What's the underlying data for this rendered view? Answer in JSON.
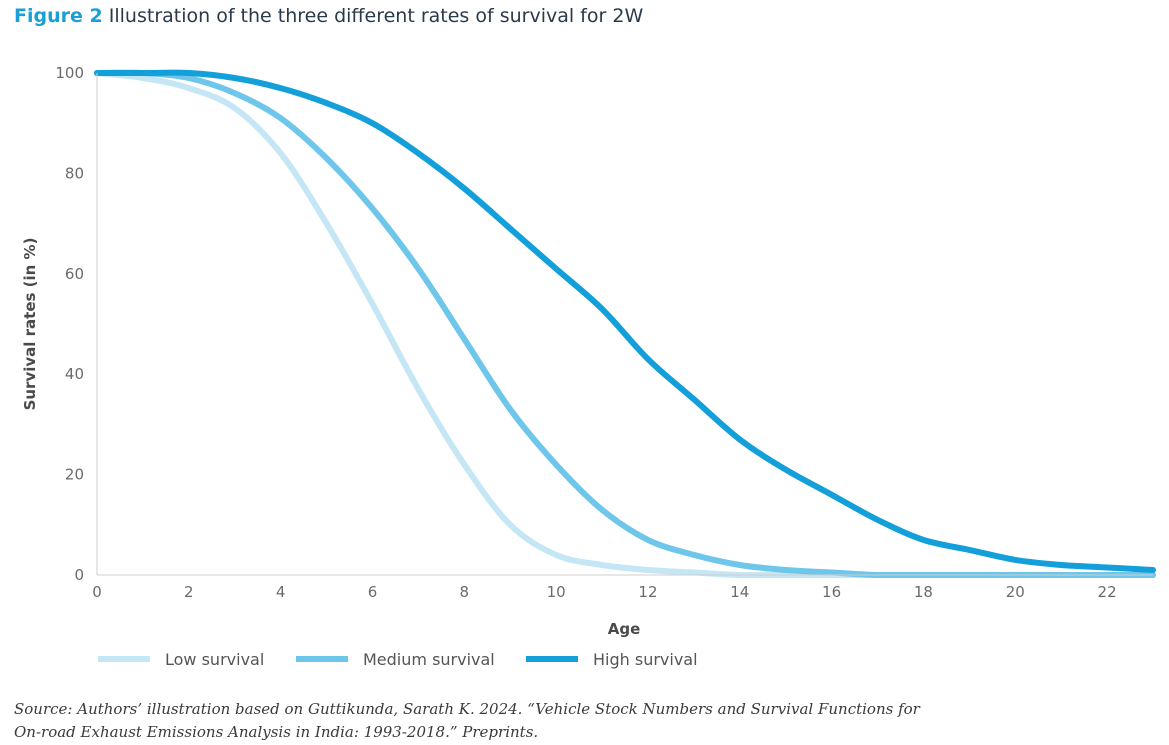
{
  "figure": {
    "label": "Figure 2",
    "title": "Illustration of the three different rates of survival for 2W"
  },
  "chart_data": {
    "type": "line",
    "xlabel": "Age",
    "ylabel": "Survival rates (in %)",
    "xlim": [
      0,
      23
    ],
    "ylim": [
      0,
      100
    ],
    "x_ticks": [
      "0",
      "2",
      "4",
      "6",
      "8",
      "10",
      "12",
      "14",
      "16",
      "18",
      "20",
      "22"
    ],
    "y_ticks": [
      "0",
      "20",
      "40",
      "60",
      "80",
      "100"
    ],
    "grid": false,
    "legend_position": "bottom-left",
    "x": [
      0,
      1,
      2,
      3,
      4,
      5,
      6,
      7,
      8,
      9,
      10,
      11,
      12,
      13,
      14,
      15,
      16,
      17,
      18,
      19,
      20,
      21,
      22,
      23
    ],
    "series": [
      {
        "name": "Low survival",
        "color": "#c4e6f5",
        "values": [
          100,
          99,
          97,
          93,
          84,
          70,
          54,
          37,
          22,
          10,
          4,
          2,
          1,
          0.5,
          0,
          0,
          0,
          0,
          0,
          0,
          0,
          0,
          0,
          0
        ]
      },
      {
        "name": "Medium survival",
        "color": "#6ec6ea",
        "values": [
          100,
          100,
          99,
          96,
          91,
          83,
          73,
          61,
          47,
          33,
          22,
          13,
          7,
          4,
          2,
          1,
          0.5,
          0,
          0,
          0,
          0,
          0,
          0,
          0
        ]
      },
      {
        "name": "High survival",
        "color": "#139fd9",
        "values": [
          100,
          100,
          100,
          99,
          97,
          94,
          90,
          84,
          77,
          69,
          61,
          53,
          43,
          35,
          27,
          21,
          16,
          11,
          7,
          5,
          3,
          2,
          1.5,
          1
        ]
      }
    ]
  },
  "source": {
    "line1": "Source: Authors’ illustration based on Guttikunda, Sarath K. 2024. “Vehicle Stock Numbers and Survival Functions for",
    "line2": "On-road Exhaust Emissions Analysis in India: 1993-2018.” Preprints."
  }
}
